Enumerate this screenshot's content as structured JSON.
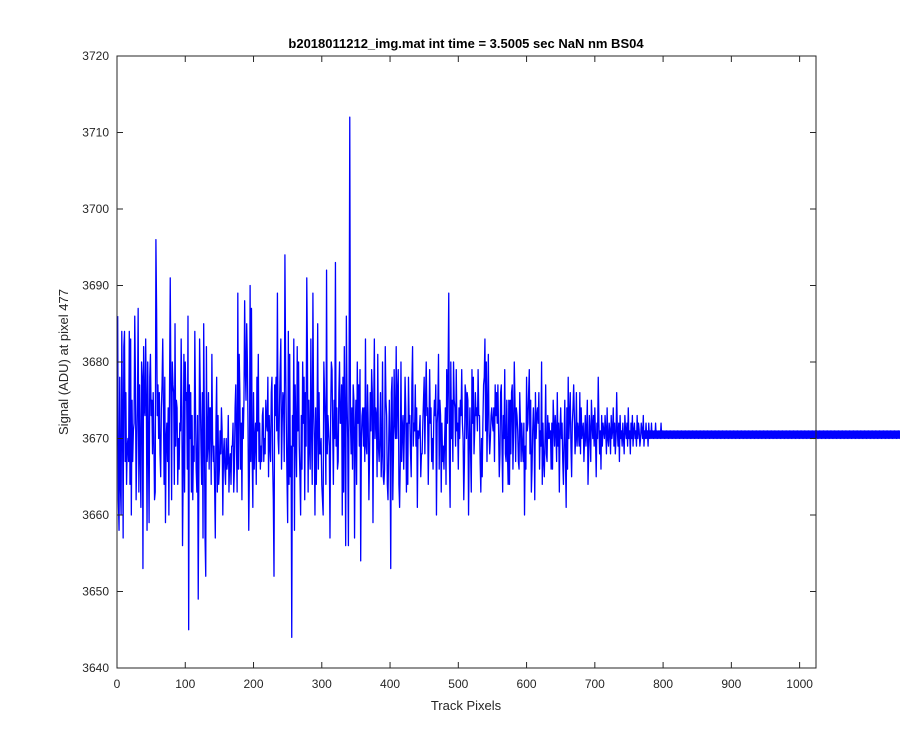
{
  "chart_data": {
    "type": "line",
    "title": "b2018011212_img.mat int time = 3.5005 sec  NaN nm BS04",
    "xlabel": "Track Pixels",
    "ylabel": "Signal (ADU) at pixel 477",
    "xlim": [
      0,
      1024
    ],
    "ylim": [
      3640,
      3720
    ],
    "xticks": [
      0,
      100,
      200,
      300,
      400,
      500,
      600,
      700,
      800,
      900,
      1000
    ],
    "yticks": [
      3640,
      3650,
      3660,
      3670,
      3680,
      3690,
      3700,
      3710,
      3720
    ],
    "grid": false,
    "line_color": "#0000ff",
    "series": [
      {
        "values": [
          3686,
          3662,
          3658,
          3678,
          3664,
          3660,
          3684,
          3673,
          3657,
          3682,
          3684,
          3667,
          3676,
          3664,
          3669,
          3670,
          3667,
          3684,
          3664,
          3683,
          3660,
          3675,
          3667,
          3671,
          3672,
          3686,
          3678,
          3662,
          3669,
          3675,
          3687,
          3663,
          3677,
          3668,
          3661,
          3680,
          3678,
          3653,
          3682,
          3674,
          3673,
          3683,
          3675,
          3658,
          3680,
          3670,
          3659,
          3678,
          3681,
          3673,
          3675,
          3668,
          3676,
          3670,
          3662,
          3663,
          3696,
          3687,
          3673,
          3677,
          3670,
          3676,
          3668,
          3665,
          3674,
          3677,
          3683,
          3674,
          3664,
          3678,
          3659,
          3670,
          3672,
          3667,
          3674,
          3660,
          3677,
          3691,
          3676,
          3662,
          3680,
          3677,
          3676,
          3664,
          3685,
          3669,
          3675,
          3674,
          3664,
          3670,
          3666,
          3672,
          3671,
          3683,
          3674,
          3656,
          3666,
          3681,
          3663,
          3680,
          3675,
          3676,
          3666,
          3686,
          3645,
          3677,
          3670,
          3676,
          3663,
          3673,
          3662,
          3669,
          3667,
          3684,
          3674,
          3666,
          3663,
          3673,
          3649,
          3666,
          3683,
          3676,
          3669,
          3664,
          3676,
          3657,
          3685,
          3672,
          3657,
          3652,
          3682,
          3667,
          3669,
          3676,
          3666,
          3674,
          3674,
          3664,
          3681,
          3670,
          3667,
          3669,
          3664,
          3657,
          3672,
          3678,
          3663,
          3673,
          3664,
          3666,
          3671,
          3668,
          3674,
          3671,
          3660,
          3668,
          3670,
          3666,
          3664,
          3670,
          3666,
          3667,
          3673,
          3663,
          3667,
          3668,
          3664,
          3669,
          3669,
          3672,
          3663,
          3666,
          3674,
          3677,
          3669,
          3663,
          3689,
          3666,
          3681,
          3676,
          3666,
          3672,
          3662,
          3674,
          3670,
          3675,
          3688,
          3679,
          3675,
          3685,
          3680,
          3671,
          3658,
          3666,
          3690,
          3667,
          3687,
          3668,
          3661,
          3676,
          3666,
          3670,
          3672,
          3664,
          3678,
          3671,
          3681,
          3667,
          3672,
          3666,
          3669,
          3667,
          3673,
          3674,
          3667,
          3670,
          3668,
          3675,
          3672,
          3671,
          3678,
          3665,
          3673,
          3669,
          3667,
          3676,
          3678,
          3667,
          3662,
          3652,
          3677,
          3673,
          3678,
          3671,
          3689,
          3670,
          3668,
          3674,
          3679,
          3683,
          3666,
          3672,
          3676,
          3675,
          3667,
          3694,
          3680,
          3672,
          3665,
          3659,
          3684,
          3664,
          3681,
          3665,
          3669,
          3644,
          3673,
          3669,
          3683,
          3658,
          3677,
          3671,
          3665,
          3682,
          3671,
          3680,
          3669,
          3665,
          3660,
          3673,
          3666,
          3680,
          3672,
          3678,
          3662,
          3676,
          3669,
          3691,
          3681,
          3663,
          3675,
          3669,
          3666,
          3683,
          3671,
          3664,
          3689,
          3674,
          3670,
          3660,
          3674,
          3664,
          3671,
          3685,
          3666,
          3676,
          3668,
          3668,
          3670,
          3664,
          3662,
          3660,
          3680,
          3676,
          3672,
          3664,
          3692,
          3668,
          3673,
          3671,
          3669,
          3657,
          3673,
          3680,
          3679,
          3671,
          3664,
          3675,
          3670,
          3693,
          3669,
          3674,
          3666,
          3667,
          3676,
          3680,
          3672,
          3672,
          3677,
          3660,
          3678,
          3663,
          3682,
          3673,
          3656,
          3686,
          3675,
          3670,
          3656,
          3678,
          3712,
          3672,
          3668,
          3674,
          3666,
          3677,
          3675,
          3657,
          3671,
          3675,
          3664,
          3680,
          3672,
          3677,
          3669,
          3679,
          3654,
          3670,
          3673,
          3674,
          3669,
          3674,
          3667,
          3683,
          3669,
          3668,
          3677,
          3672,
          3662,
          3668,
          3676,
          3671,
          3679,
          3676,
          3659,
          3673,
          3683,
          3670,
          3674,
          3673,
          3665,
          3681,
          3669,
          3667,
          3670,
          3676,
          3665,
          3668,
          3680,
          3665,
          3664,
          3666,
          3682,
          3675,
          3673,
          3664,
          3662,
          3669,
          3675,
          3670,
          3653,
          3676,
          3678,
          3662,
          3668,
          3679,
          3672,
          3670,
          3682,
          3670,
          3676,
          3679,
          3664,
          3661,
          3667,
          3680,
          3667,
          3671,
          3673,
          3666,
          3671,
          3678,
          3674,
          3663,
          3672,
          3664,
          3678,
          3672,
          3673,
          3668,
          3665,
          3677,
          3682,
          3669,
          3672,
          3671,
          3677,
          3669,
          3674,
          3661,
          3671,
          3670,
          3671,
          3673,
          3665,
          3668,
          3668,
          3672,
          3675,
          3678,
          3668,
          3675,
          3680,
          3673,
          3674,
          3664,
          3671,
          3679,
          3672,
          3674,
          3667,
          3670,
          3666,
          3672,
          3675,
          3673,
          3677,
          3660,
          3672,
          3674,
          3681,
          3666,
          3675,
          3673,
          3663,
          3672,
          3667,
          3669,
          3666,
          3670,
          3674,
          3664,
          3679,
          3672,
          3678,
          3689,
          3667,
          3661,
          3680,
          3670,
          3675,
          3667,
          3680,
          3675,
          3674,
          3669,
          3679,
          3671,
          3672,
          3666,
          3674,
          3670,
          3675,
          3673,
          3679,
          3672,
          3670,
          3662,
          3667,
          3677,
          3676,
          3670,
          3676,
          3675,
          3660,
          3669,
          3674,
          3668,
          3663,
          3679,
          3672,
          3678,
          3668,
          3671,
          3676,
          3673,
          3674,
          3671,
          3679,
          3673,
          3673,
          3667,
          3663,
          3670,
          3665,
          3672,
          3677,
          3678,
          3683,
          3671,
          3680,
          3667,
          3674,
          3681,
          3671,
          3668,
          3670,
          3673,
          3674,
          3672,
          3671,
          3674,
          3667,
          3677,
          3673,
          3676,
          3672,
          3677,
          3671,
          3665,
          3668,
          3676,
          3677,
          3669,
          3663,
          3673,
          3670,
          3679,
          3668,
          3667,
          3675,
          3668,
          3664,
          3675,
          3664,
          3675,
          3668,
          3676,
          3677,
          3666,
          3671,
          3680,
          3675,
          3667,
          3674,
          3673,
          3671,
          3667,
          3666,
          3676,
          3672,
          3667,
          3672,
          3669,
          3667,
          3672,
          3660,
          3669,
          3666,
          3678,
          3671,
          3672,
          3676,
          3679,
          3668,
          3675,
          3663,
          3666,
          3671,
          3674,
          3671,
          3662,
          3676,
          3670,
          3673,
          3674,
          3672,
          3676,
          3666,
          3671,
          3669,
          3680,
          3664,
          3672,
          3667,
          3665,
          3670,
          3677,
          3668,
          3667,
          3673,
          3670,
          3672,
          3670,
          3671,
          3666,
          3672,
          3666,
          3675,
          3672,
          3669,
          3673,
          3671,
          3667,
          3676,
          3669,
          3672,
          3663,
          3671,
          3674,
          3670,
          3672,
          3667,
          3664,
          3670,
          3675,
          3667,
          3661,
          3674,
          3666,
          3678,
          3670,
          3673,
          3676,
          3669,
          3665,
          3672,
          3674,
          3677,
          3673,
          3668,
          3670,
          3676,
          3669,
          3672,
          3671,
          3669,
          3676,
          3668,
          3674,
          3670,
          3671,
          3672,
          3667,
          3670,
          3673,
          3669,
          3671,
          3675,
          3664,
          3668,
          3673,
          3671,
          3667,
          3675,
          3672,
          3670,
          3673,
          3669,
          3674,
          3670,
          3665,
          3672,
          3670,
          3678,
          3672,
          3668,
          3671,
          3666,
          3673,
          3669,
          3672,
          3671,
          3670,
          3673,
          3671,
          3668,
          3674,
          3670,
          3669,
          3672,
          3671,
          3668,
          3673,
          3670,
          3671,
          3674,
          3669,
          3672,
          3668,
          3670,
          3676,
          3671,
          3669,
          3672,
          3667,
          3673,
          3670,
          3671,
          3669,
          3672,
          3670,
          3668,
          3673,
          3671,
          3670,
          3672,
          3669,
          3674,
          3670,
          3671,
          3668,
          3672,
          3670,
          3673,
          3669,
          3671,
          3672,
          3670,
          3671,
          3669,
          3673,
          3670,
          3672,
          3671,
          3669,
          3670,
          3672,
          3671,
          3670,
          3673,
          3669,
          3671,
          3670,
          3672,
          3670,
          3671,
          3669,
          3672,
          3670,
          3671,
          3670,
          3672,
          3670,
          3671,
          3670,
          3671,
          3670,
          3672,
          3670,
          3671,
          3670,
          3671,
          3670,
          3671,
          3670,
          3672,
          3670,
          3671,
          3670,
          3671,
          3670,
          3671,
          3670,
          3671,
          3670,
          3671,
          3670,
          3671,
          3670,
          3671,
          3670,
          3671,
          3670,
          3671,
          3670,
          3671,
          3670,
          3671,
          3670,
          3671,
          3670,
          3671,
          3670,
          3671,
          3670,
          3671,
          3670,
          3671,
          3670,
          3671,
          3670,
          3671,
          3670,
          3671,
          3670,
          3671,
          3670,
          3671,
          3670,
          3671,
          3670,
          3671,
          3670,
          3671,
          3670,
          3671,
          3670,
          3671,
          3670,
          3671,
          3670,
          3671,
          3670,
          3671,
          3670,
          3671,
          3670,
          3671,
          3670,
          3671,
          3670,
          3671,
          3670,
          3671,
          3670,
          3671,
          3670,
          3671,
          3670,
          3671,
          3670,
          3671,
          3670,
          3671,
          3670,
          3671,
          3670,
          3671,
          3670,
          3671,
          3670,
          3671,
          3670,
          3671,
          3670,
          3671,
          3670,
          3671,
          3670,
          3671,
          3670,
          3671,
          3670,
          3671,
          3670,
          3671,
          3670,
          3671,
          3670,
          3671,
          3670,
          3671,
          3670,
          3671,
          3670,
          3671,
          3670,
          3671,
          3670,
          3671,
          3670,
          3671,
          3670,
          3671,
          3670,
          3671,
          3670,
          3671,
          3670,
          3671,
          3670,
          3671,
          3670,
          3671,
          3670,
          3671,
          3670,
          3671,
          3670,
          3671,
          3670,
          3671,
          3670,
          3671,
          3670,
          3671,
          3670,
          3671,
          3670,
          3671,
          3670,
          3671,
          3670,
          3671,
          3670,
          3671,
          3670,
          3671,
          3670,
          3671,
          3670,
          3671,
          3670,
          3671,
          3670,
          3671,
          3670,
          3671,
          3670,
          3671,
          3670,
          3671,
          3670,
          3671,
          3670,
          3671,
          3670,
          3671,
          3670,
          3671,
          3670,
          3671,
          3670,
          3671,
          3670,
          3671,
          3670,
          3671,
          3670,
          3671,
          3670,
          3671,
          3670,
          3671,
          3670,
          3671,
          3670,
          3671,
          3670,
          3671,
          3670,
          3671,
          3670,
          3671,
          3670,
          3671,
          3670,
          3671,
          3670,
          3671,
          3670,
          3671,
          3670,
          3671,
          3670,
          3671,
          3670,
          3671,
          3670,
          3671,
          3670,
          3671,
          3670,
          3671,
          3670,
          3671,
          3670,
          3671,
          3670,
          3671,
          3670,
          3671,
          3670,
          3671,
          3670,
          3671,
          3670,
          3671,
          3670,
          3671,
          3670,
          3671,
          3670,
          3671,
          3670,
          3671,
          3670,
          3671,
          3670,
          3671,
          3670,
          3671,
          3670,
          3671,
          3670,
          3671,
          3670,
          3671,
          3670,
          3671,
          3670,
          3671,
          3670,
          3671,
          3670,
          3671,
          3670,
          3671,
          3670,
          3671,
          3670,
          3671,
          3670,
          3671,
          3670,
          3671,
          3670,
          3671,
          3670,
          3671,
          3670,
          3671,
          3670,
          3671,
          3670,
          3671,
          3670,
          3671,
          3670,
          3671,
          3670,
          3671,
          3670,
          3671,
          3670,
          3671,
          3670,
          3671,
          3670,
          3671,
          3670,
          3671,
          3670,
          3671,
          3670,
          3671,
          3670,
          3671,
          3670,
          3671,
          3670,
          3671,
          3670,
          3671,
          3670,
          3671,
          3670,
          3671,
          3670,
          3671,
          3670,
          3671,
          3670,
          3671,
          3670,
          3671,
          3670,
          3671,
          3670,
          3671,
          3670,
          3671,
          3670,
          3671,
          3670,
          3671,
          3670,
          3671,
          3670,
          3671,
          3670,
          3671,
          3670,
          3671,
          3670,
          3671,
          3670,
          3671,
          3670,
          3671,
          3670,
          3671,
          3670,
          3671,
          3670,
          3671,
          3670,
          3671,
          3670,
          3671,
          3670,
          3671,
          3670,
          3671
        ]
      }
    ]
  }
}
